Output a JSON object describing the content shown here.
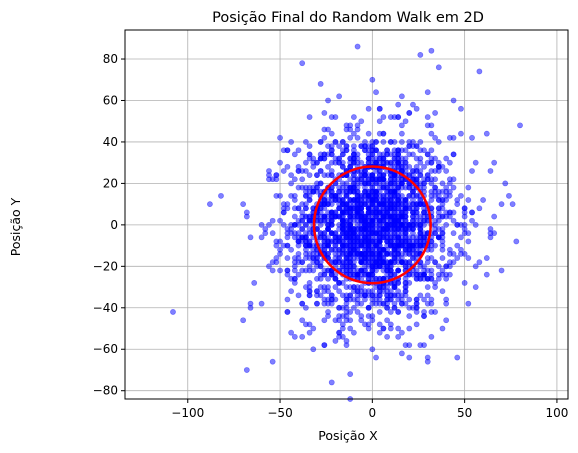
{
  "chart_data": {
    "type": "scatter",
    "title": "Posição Final do Random Walk em 2D",
    "xlabel": "Posição X",
    "ylabel": "Posição Y",
    "xlim": [
      -134,
      106
    ],
    "ylim": [
      -84,
      94
    ],
    "xticks": [
      -100,
      -50,
      0,
      50,
      100
    ],
    "xtick_labels": [
      "−100",
      "−50",
      "0",
      "50",
      "100"
    ],
    "yticks": [
      -80,
      -60,
      -40,
      -20,
      0,
      20,
      40,
      60,
      80
    ],
    "ytick_labels": [
      "−80",
      "−60",
      "−40",
      "−20",
      "0",
      "20",
      "40",
      "60",
      "80"
    ],
    "grid": true,
    "point_color": "#0000ff",
    "point_opacity": 0.5,
    "circle": {
      "center": [
        0,
        0
      ],
      "radius": 31.6,
      "color": "#ff0000"
    },
    "approx_point_count": 2500,
    "points_sample": [
      [
        -108,
        -42
      ],
      [
        -82,
        14
      ],
      [
        -68,
        -70
      ],
      [
        -64,
        -28
      ],
      [
        -60,
        0
      ],
      [
        -56,
        24
      ],
      [
        -54,
        -66
      ],
      [
        -50,
        42
      ],
      [
        -46,
        28
      ],
      [
        -42,
        -54
      ],
      [
        -38,
        78
      ],
      [
        -34,
        -28
      ],
      [
        -32,
        -60
      ],
      [
        -28,
        68
      ],
      [
        -22,
        -76
      ],
      [
        -18,
        62
      ],
      [
        -12,
        -72
      ],
      [
        -8,
        86
      ],
      [
        -2,
        -40
      ],
      [
        0,
        70
      ],
      [
        4,
        56
      ],
      [
        6,
        -50
      ],
      [
        10,
        52
      ],
      [
        16,
        -62
      ],
      [
        22,
        58
      ],
      [
        26,
        82
      ],
      [
        30,
        -64
      ],
      [
        32,
        84
      ],
      [
        38,
        -50
      ],
      [
        44,
        60
      ],
      [
        48,
        56
      ],
      [
        52,
        -38
      ],
      [
        54,
        42
      ],
      [
        56,
        30
      ],
      [
        58,
        74
      ],
      [
        62,
        44
      ],
      [
        64,
        -6
      ],
      [
        70,
        -22
      ],
      [
        72,
        20
      ],
      [
        74,
        14
      ],
      [
        76,
        10
      ],
      [
        78,
        -8
      ]
    ]
  }
}
